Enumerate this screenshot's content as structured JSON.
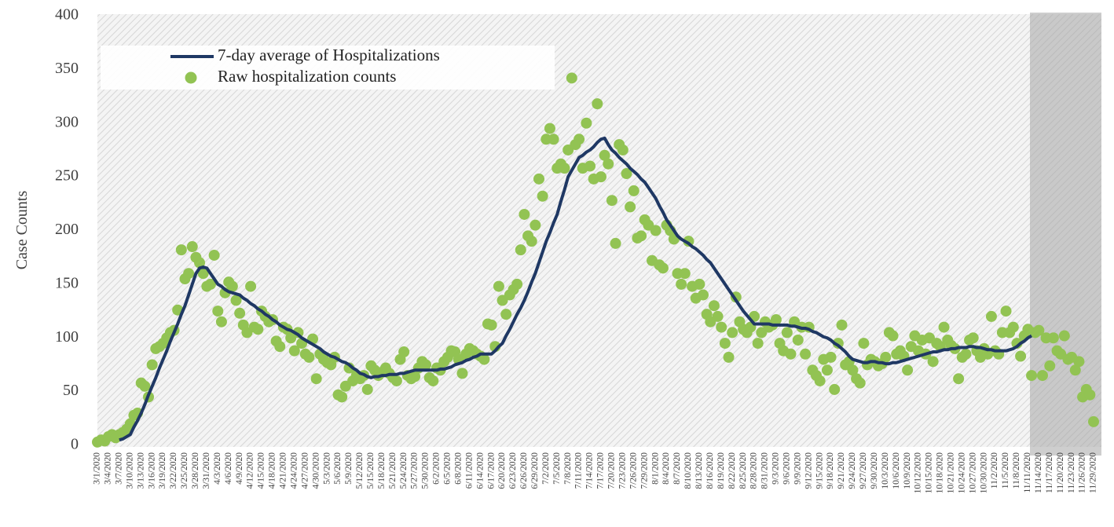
{
  "chart_data": {
    "type": "line",
    "y_label": "Case Counts",
    "categories": [
      "3/1/2020",
      null,
      null,
      "3/4/2020",
      null,
      null,
      "3/7/2020",
      null,
      null,
      "3/10/2020",
      null,
      null,
      "3/13/2020",
      null,
      null,
      "3/16/2020",
      null,
      null,
      "3/19/2020",
      null,
      null,
      "3/22/2020",
      null,
      null,
      "3/25/2020",
      null,
      null,
      "3/28/2020",
      null,
      null,
      "3/31/2020",
      null,
      null,
      "4/3/2020",
      null,
      null,
      "4/6/2020",
      null,
      null,
      "4/9/2020",
      null,
      null,
      "4/12/2020",
      null,
      null,
      "4/15/2020",
      null,
      null,
      "4/18/2020",
      null,
      null,
      "4/21/2020",
      null,
      null,
      "4/24/2020",
      null,
      null,
      "4/27/2020",
      null,
      null,
      "4/30/2020",
      null,
      null,
      "5/3/2020",
      null,
      null,
      "5/6/2020",
      null,
      null,
      "5/9/2020",
      null,
      null,
      "5/12/2020",
      null,
      null,
      "5/15/2020",
      null,
      null,
      "5/18/2020",
      null,
      null,
      "5/21/2020",
      null,
      null,
      "5/24/2020",
      null,
      null,
      "5/27/2020",
      null,
      null,
      "5/30/2020",
      null,
      null,
      "6/2/2020",
      null,
      null,
      "6/5/2020",
      null,
      null,
      "6/8/2020",
      null,
      null,
      "6/11/2020",
      null,
      null,
      "6/14/2020",
      null,
      null,
      "6/17/2020",
      null,
      null,
      "6/20/2020",
      null,
      null,
      "6/23/2020",
      null,
      null,
      "6/26/2020",
      null,
      null,
      "6/29/2020",
      null,
      null,
      "7/2/2020",
      null,
      null,
      "7/5/2020",
      null,
      null,
      "7/8/2020",
      null,
      null,
      "7/11/2020",
      null,
      null,
      "7/14/2020",
      null,
      null,
      "7/17/2020",
      null,
      null,
      "7/20/2020",
      null,
      null,
      "7/23/2020",
      null,
      null,
      "7/26/2020",
      null,
      null,
      "7/29/2020",
      null,
      null,
      "8/1/2020",
      null,
      null,
      "8/4/2020",
      null,
      null,
      "8/7/2020",
      null,
      null,
      "8/10/2020",
      null,
      null,
      "8/13/2020",
      null,
      null,
      "8/16/2020",
      null,
      null,
      "8/19/2020",
      null,
      null,
      "8/22/2020",
      null,
      null,
      "8/25/2020",
      null,
      null,
      "8/28/2020",
      null,
      null,
      "8/31/2020",
      null,
      null,
      "9/3/2020",
      null,
      null,
      "9/6/2020",
      null,
      null,
      "9/9/2020",
      null,
      null,
      "9/12/2020",
      null,
      null,
      "9/15/2020",
      null,
      null,
      "9/18/2020",
      null,
      null,
      "9/21/2020",
      null,
      null,
      "9/24/2020",
      null,
      null,
      "9/27/2020",
      null,
      null,
      "9/30/2020",
      null,
      null,
      "10/3/2020",
      null,
      null,
      "10/6/2020",
      null,
      null,
      "10/9/2020",
      null,
      null,
      "10/12/2020",
      null,
      null,
      "10/15/2020",
      null,
      null,
      "10/18/2020",
      null,
      null,
      "10/21/2020",
      null,
      null,
      "10/24/2020",
      null,
      null,
      "10/27/2020",
      null,
      null,
      "10/30/2020",
      null,
      null,
      "11/2/2020",
      null,
      null,
      "11/5/2020",
      null,
      null,
      "11/8/2020",
      null,
      null,
      "11/11/2020",
      null,
      null,
      "11/14/2020",
      null,
      null,
      "11/17/2020",
      null,
      null,
      "11/20/2020",
      null,
      null,
      "11/23/2020",
      null,
      null,
      "11/26/2020",
      null,
      null,
      "11/29/2020"
    ],
    "series": [
      {
        "name": "7-day average of Hospitalizations",
        "color": "#1f3864",
        "style": "line",
        "values": [
          null,
          null,
          null,
          null,
          null,
          null,
          5,
          6,
          8,
          10,
          17,
          23,
          30,
          38,
          47,
          55,
          63,
          72,
          80,
          88,
          97,
          105,
          113,
          122,
          130,
          140,
          150,
          160,
          165,
          166,
          165,
          160,
          155,
          150,
          148,
          145,
          143,
          142,
          141,
          140,
          137,
          135,
          132,
          130,
          127,
          125,
          122,
          120,
          117,
          115,
          112,
          110,
          108,
          107,
          105,
          103,
          100,
          98,
          96,
          94,
          92,
          90,
          87,
          85,
          83,
          82,
          80,
          78,
          77,
          75,
          72,
          70,
          67,
          66,
          64,
          63,
          64,
          64,
          65,
          65,
          66,
          66,
          66,
          67,
          67,
          68,
          69,
          70,
          70,
          70,
          70,
          70,
          70,
          70,
          71,
          71,
          72,
          73,
          75,
          76,
          77,
          79,
          80,
          82,
          83,
          85,
          85,
          85,
          85,
          88,
          92,
          95,
          102,
          108,
          115,
          122,
          128,
          135,
          143,
          152,
          160,
          170,
          180,
          190,
          198,
          207,
          215,
          227,
          238,
          250,
          256,
          262,
          268,
          270,
          273,
          275,
          278,
          282,
          285,
          286,
          280,
          275,
          272,
          268,
          265,
          262,
          258,
          255,
          252,
          248,
          245,
          240,
          235,
          230,
          223,
          217,
          210,
          205,
          200,
          195,
          192,
          190,
          188,
          185,
          183,
          180,
          177,
          173,
          170,
          165,
          160,
          155,
          150,
          145,
          140,
          135,
          130,
          125,
          121,
          117,
          113,
          113,
          113,
          113,
          113,
          112,
          112,
          112,
          112,
          112,
          111,
          111,
          110,
          109,
          109,
          108,
          106,
          105,
          103,
          101,
          100,
          98,
          95,
          93,
          90,
          87,
          83,
          80,
          79,
          78,
          77,
          77,
          78,
          78,
          77,
          77,
          76,
          76,
          77,
          77,
          78,
          79,
          80,
          81,
          82,
          83,
          84,
          85,
          86,
          87,
          87,
          88,
          89,
          89,
          90,
          90,
          91,
          91,
          91,
          92,
          92,
          91,
          91,
          90,
          89,
          89,
          88,
          88,
          88,
          88,
          89,
          90,
          92,
          95,
          97,
          100,
          102,
          null,
          null,
          null,
          null,
          null,
          null,
          null,
          null,
          null,
          null,
          null,
          null,
          null,
          null,
          null,
          null,
          null
        ]
      },
      {
        "name": "Raw hospitalization counts",
        "color": "#92c353",
        "style": "scatter",
        "values": [
          3,
          5,
          4,
          8,
          10,
          7,
          10,
          12,
          15,
          20,
          28,
          30,
          58,
          55,
          45,
          75,
          90,
          92,
          95,
          100,
          105,
          107,
          126,
          182,
          155,
          160,
          185,
          175,
          170,
          160,
          148,
          150,
          177,
          125,
          115,
          142,
          152,
          148,
          135,
          123,
          112,
          105,
          148,
          110,
          108,
          125,
          120,
          115,
          117,
          97,
          92,
          110,
          108,
          100,
          88,
          105,
          95,
          85,
          82,
          99,
          62,
          85,
          80,
          77,
          75,
          82,
          47,
          45,
          55,
          72,
          60,
          65,
          62,
          65,
          52,
          74,
          70,
          65,
          68,
          72,
          67,
          63,
          60,
          80,
          87,
          65,
          62,
          64,
          72,
          78,
          75,
          63,
          60,
          72,
          70,
          78,
          82,
          88,
          87,
          80,
          67,
          85,
          90,
          88,
          85,
          83,
          80,
          113,
          112,
          92,
          148,
          135,
          122,
          140,
          145,
          150,
          182,
          215,
          195,
          190,
          205,
          248,
          232,
          285,
          295,
          285,
          258,
          262,
          258,
          275,
          342,
          280,
          285,
          258,
          300,
          260,
          248,
          318,
          250,
          270,
          262,
          228,
          188,
          280,
          275,
          253,
          222,
          237,
          193,
          195,
          210,
          205,
          172,
          200,
          168,
          165,
          205,
          200,
          192,
          160,
          150,
          160,
          190,
          148,
          137,
          150,
          140,
          122,
          115,
          130,
          120,
          110,
          95,
          82,
          105,
          138,
          115,
          108,
          105,
          110,
          120,
          95,
          105,
          115,
          110,
          112,
          117,
          95,
          88,
          105,
          85,
          115,
          98,
          110,
          85,
          110,
          70,
          65,
          60,
          80,
          70,
          82,
          52,
          95,
          112,
          75,
          78,
          70,
          62,
          58,
          95,
          75,
          80,
          78,
          74,
          76,
          82,
          105,
          102,
          85,
          88,
          83,
          70,
          92,
          102,
          88,
          98,
          85,
          100,
          78,
          95,
          92,
          110,
          98,
          93,
          90,
          62,
          82,
          85,
          98,
          100,
          88,
          82,
          90,
          85,
          120,
          88,
          85,
          105,
          125,
          105,
          110,
          95,
          83,
          102,
          108,
          65,
          105,
          107,
          65,
          100,
          74,
          100,
          88,
          85,
          102,
          80,
          82,
          70,
          78,
          45,
          52,
          47,
          22
        ]
      }
    ],
    "ylim": [
      0,
      400
    ],
    "yticks": [
      0,
      50,
      100,
      150,
      200,
      250,
      300,
      350,
      400
    ],
    "grid": false,
    "legend": "upper left"
  }
}
